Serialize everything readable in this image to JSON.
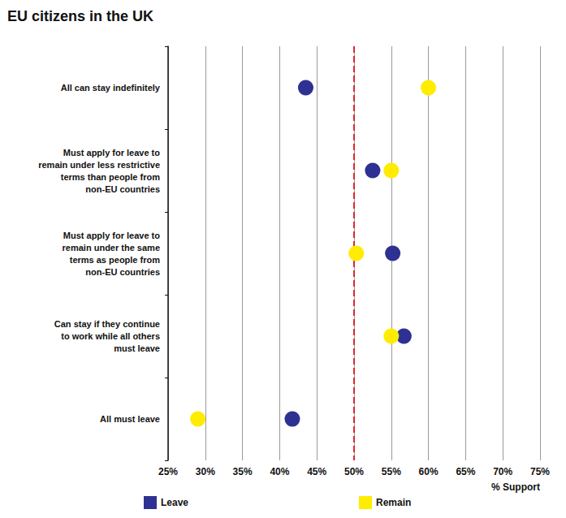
{
  "chart_data": {
    "type": "scatter",
    "title": "EU citizens in the UK",
    "orientation": "horizontal",
    "categories": [
      "All can stay indefinitely",
      "Must apply for leave to\nremain under less restrictive\nterms than people from\nnon-EU countries",
      "Must apply for leave to\nremain under the same\nterms as people from\nnon-EU countries",
      "Can stay if they continue\nto work while all others\nmust leave",
      "All must leave"
    ],
    "series": [
      {
        "name": "Leave",
        "color": "#2e3192",
        "values": [
          43.5,
          52.5,
          55.2,
          56.7,
          41.7
        ]
      },
      {
        "name": "Remain",
        "color": "#ffec00",
        "values": [
          60,
          55,
          50.3,
          55,
          29
        ]
      }
    ],
    "x_label": "% Support",
    "xlim": [
      25,
      75
    ],
    "xticks": [
      {
        "value": 25,
        "label": "25%"
      },
      {
        "value": 30,
        "label": "30%"
      },
      {
        "value": 35,
        "label": "35%"
      },
      {
        "value": 40,
        "label": "40%"
      },
      {
        "value": 45,
        "label": "45%"
      },
      {
        "value": 50,
        "label": "50%"
      },
      {
        "value": 55,
        "label": "55%"
      },
      {
        "value": 60,
        "label": "60%"
      },
      {
        "value": 65,
        "label": "65%"
      },
      {
        "value": 70,
        "label": "70%"
      },
      {
        "value": 75,
        "label": "75%"
      }
    ],
    "reference_line": {
      "value": 50,
      "color": "#e0262b",
      "line_style": "dashed"
    },
    "grid": true,
    "legend": "bottom",
    "marker": "circle"
  }
}
